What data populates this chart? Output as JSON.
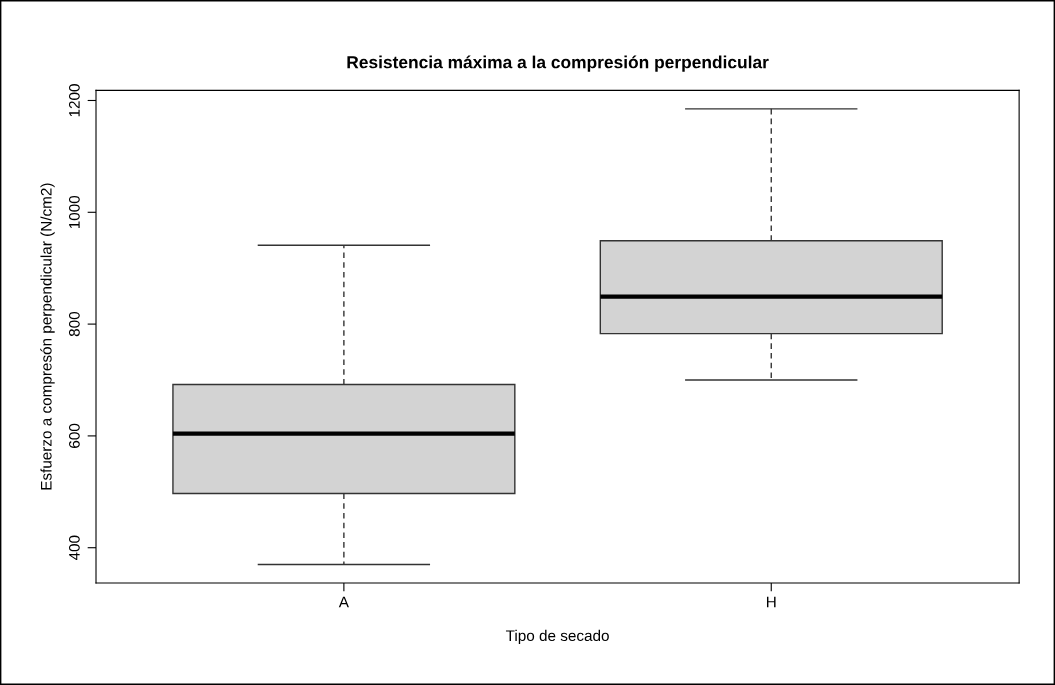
{
  "chart_data": {
    "type": "box",
    "title": "Resistencia máxima a la compresión perpendicular",
    "xlabel": "Tipo de secado",
    "ylabel": "Esfuerzo a compresón perpendicular (N/cm2)",
    "categories": [
      "A",
      "H"
    ],
    "color": "#d3d3d3",
    "boxes": [
      {
        "low": 370,
        "q1": 497,
        "median": 604,
        "q3": 692,
        "high": 941
      },
      {
        "low": 700,
        "q1": 783,
        "median": 849,
        "q3": 949,
        "high": 1185
      }
    ],
    "ylim": [
      337,
      1218
    ],
    "yticks": [
      400,
      600,
      800,
      1000,
      1200
    ],
    "grid": false
  }
}
